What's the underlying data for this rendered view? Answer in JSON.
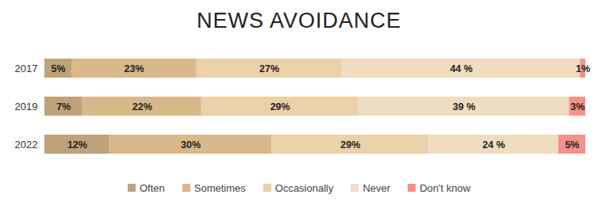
{
  "chart_data": {
    "type": "bar",
    "title": "NEWS AVOIDANCE",
    "orientation": "horizontal",
    "stacked": true,
    "data_labels": true,
    "tick_labels": "y",
    "legend": "bottom",
    "categories": [
      "2017",
      "2019",
      "2022"
    ],
    "xlim": [
      0,
      100
    ],
    "series": [
      {
        "name": "Often",
        "color": "#bfa27a",
        "values": [
          5,
          7,
          12
        ],
        "value_labels": [
          "5%",
          "7%",
          "12%"
        ]
      },
      {
        "name": "Sometimes",
        "color": "#d9b88a",
        "values": [
          23,
          22,
          30
        ],
        "value_labels": [
          "23%",
          "22%",
          "30%"
        ]
      },
      {
        "name": "Occasionally",
        "color": "#ebd1a8",
        "values": [
          27,
          29,
          29
        ],
        "value_labels": [
          "27%",
          "29%",
          "29%"
        ]
      },
      {
        "name": "Never",
        "color": "#f0dcc0",
        "values": [
          44,
          39,
          24
        ],
        "value_labels": [
          "44 %",
          "39 %",
          "24 %"
        ]
      },
      {
        "name": "Don't know",
        "color": "#f4928a",
        "values": [
          1,
          3,
          5
        ],
        "value_labels": [
          "1%",
          "3%",
          "5%"
        ]
      }
    ]
  }
}
